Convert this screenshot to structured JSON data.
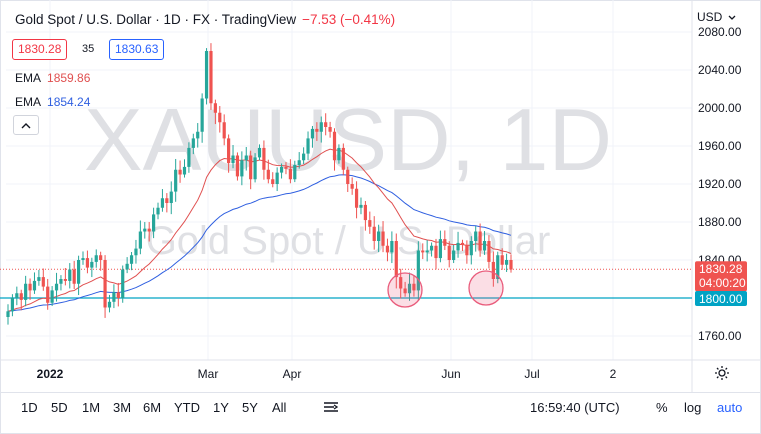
{
  "legend": {
    "title": "Gold Spot / U.S. Dollar · 1D · FX · TradingView",
    "change": "−7.53 (−0.41%)",
    "bid": "1830.28",
    "spread": "35",
    "ask": "1830.63",
    "ema1_label": "EMA",
    "ema1_value": "1859.86",
    "ema2_label": "EMA",
    "ema2_value": "1854.24"
  },
  "watermark": {
    "symbol": "XAUUSD, 1D",
    "name": "Gold Spot / U.S. Dollar"
  },
  "currency_selector": "USD",
  "price_axis": {
    "ticks": [
      "2080.00",
      "2040.00",
      "2000.00",
      "1960.00",
      "1920.00",
      "1880.00",
      "1840.00",
      "1760.00"
    ],
    "last_price": "1830.28",
    "countdown": "04:00:20",
    "support_label": "1800.00"
  },
  "time_axis": {
    "ticks": [
      "2022",
      "Mar",
      "Apr",
      "Jun",
      "Jul",
      "2"
    ]
  },
  "toolbar": {
    "timeframes": [
      "1D",
      "5D",
      "1M",
      "3M",
      "6M",
      "YTD",
      "1Y",
      "5Y",
      "All"
    ],
    "clock": "16:59:40 (UTC)",
    "percent": "%",
    "log": "log",
    "auto": "auto"
  },
  "colors": {
    "up": "#26a69a",
    "down": "#ef5350",
    "ema_fast": "#e05050",
    "ema_slow": "#2f5fe0",
    "support_line": "#00a3c4",
    "highlight": "#e95b7b"
  },
  "chart_data": {
    "type": "candlestick",
    "symbol": "XAUUSD",
    "interval": "1D",
    "ylim": [
      1740,
      2080
    ],
    "support_level": 1800,
    "last_price": 1830.28,
    "closes": [
      1786,
      1800,
      1805,
      1798,
      1815,
      1808,
      1818,
      1822,
      1812,
      1795,
      1808,
      1815,
      1820,
      1818,
      1830,
      1815,
      1840,
      1842,
      1832,
      1838,
      1845,
      1840,
      1790,
      1796,
      1806,
      1800,
      1830,
      1836,
      1845,
      1852,
      1870,
      1873,
      1870,
      1888,
      1895,
      1905,
      1900,
      1912,
      1935,
      1930,
      1938,
      1958,
      1968,
      1975,
      2010,
      2060,
      2005,
      1995,
      1985,
      1968,
      1942,
      1950,
      1928,
      1945,
      1950,
      1925,
      1948,
      1958,
      1935,
      1925,
      1920,
      1932,
      1938,
      1936,
      1925,
      1940,
      1945,
      1952,
      1968,
      1978,
      1975,
      1985,
      1980,
      1975,
      1945,
      1958,
      1935,
      1920,
      1915,
      1895,
      1898,
      1882,
      1875,
      1860,
      1870,
      1855,
      1848,
      1860,
      1822,
      1810,
      1805,
      1815,
      1808,
      1850,
      1848,
      1850,
      1855,
      1842,
      1862,
      1855,
      1840,
      1850,
      1858,
      1856,
      1845,
      1860,
      1870,
      1850,
      1860,
      1838,
      1820,
      1845,
      1835,
      1840,
      1830
    ]
  }
}
